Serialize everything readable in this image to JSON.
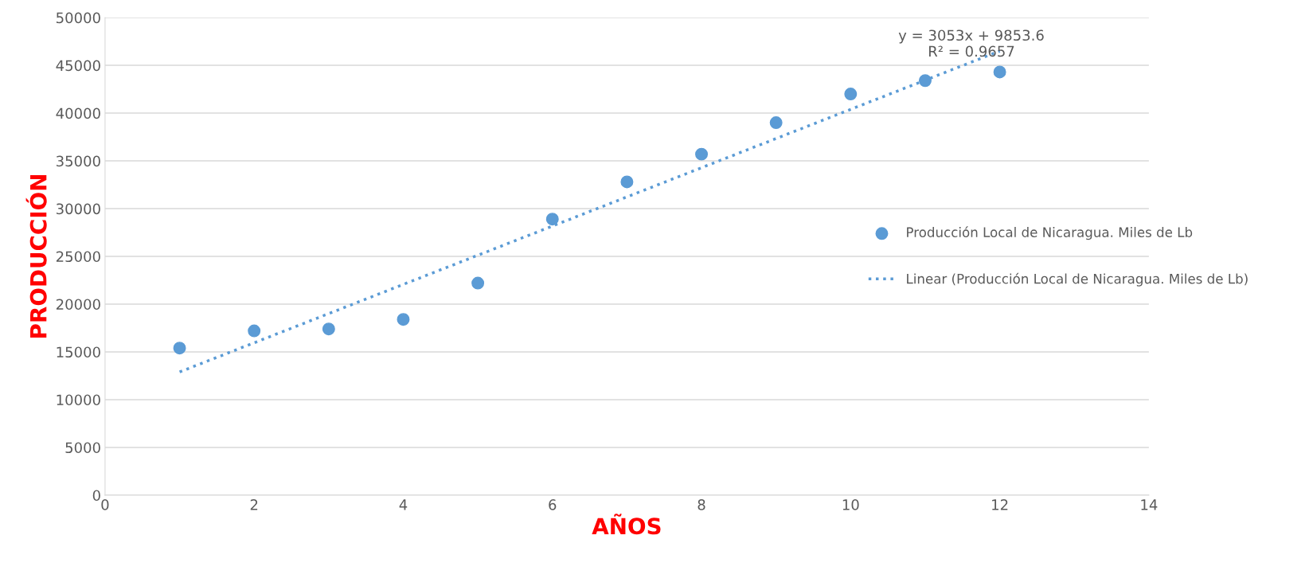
{
  "chart_data": {
    "type": "scatter",
    "xlabel": "AÑOS",
    "ylabel": "PRODUCCIÓN",
    "annotations": [
      "y = 3053x + 9853.6\nR² = 0.9657"
    ],
    "x": [
      1,
      2,
      3,
      4,
      5,
      6,
      7,
      8,
      9,
      10,
      11,
      12
    ],
    "series": [
      {
        "name": "Producción Local de Nicaragua. Miles de Lb",
        "color": "#5b9bd5",
        "marker": "circle",
        "values": [
          15400,
          17200,
          17400,
          18400,
          22200,
          28900,
          32800,
          35700,
          39000,
          42000,
          43400,
          44300
        ]
      },
      {
        "name": "Linear (Producción Local de Nicaragua. Miles de Lb)",
        "type": "line",
        "color": "#5b9bd5",
        "line_style": "dotted",
        "marker": "none",
        "x": [
          1,
          12
        ],
        "values": [
          12900,
          46500
        ]
      }
    ],
    "xlim": [
      0,
      14
    ],
    "xticks": [
      0,
      2,
      4,
      6,
      8,
      10,
      12,
      14
    ],
    "ylim": [
      0,
      50000
    ],
    "yticks": [
      0,
      5000,
      10000,
      15000,
      20000,
      25000,
      30000,
      35000,
      40000,
      45000,
      50000
    ],
    "grid": "y",
    "legend": "right"
  }
}
